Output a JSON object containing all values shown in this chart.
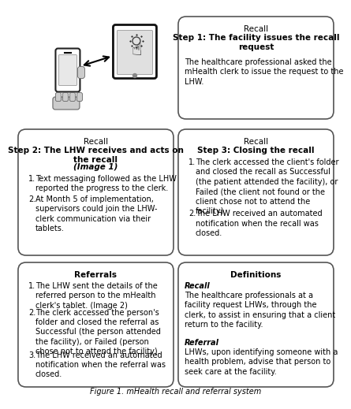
{
  "figure_title": "Figure 1. mHealth recall and referral system",
  "background_color": "#ffffff",
  "top_right_box": {
    "title": "Recall",
    "subtitle": "Step 1: The facility issues the recall\nrequest",
    "body": "The healthcare professional asked the\nmHealth clerk to issue the request to the\nLHW."
  },
  "middle_left_box": {
    "title": "Recall",
    "subtitle": "Step 2: The LHW receives and acts on\nthe recall",
    "subtitle_italic": "(Image 1)",
    "items": [
      "Text messaging followed as the LHW\nreported the progress to the clerk.",
      "At Month 5 of implementation,\nsupervisors could join the LHW-\nclerk communication via their\ntablets."
    ]
  },
  "middle_right_box": {
    "title": "Recall",
    "subtitle": "Step 3: Closing the recall",
    "items": [
      "The clerk accessed the client's folder\nand closed the recall as Successful\n(the patient attended the facility), or\nFailed (the client not found or the\nclient chose not to attend the\nfacility).",
      "The LHW received an automated\nnotification when the recall was\nclosed."
    ]
  },
  "bottom_left_box": {
    "title": "Referrals",
    "items": [
      "The LHW sent the details of the\nreferred person to the mHealth\nclerk's tablet. (Image 2)",
      "The clerk accessed the person's\nfolder and closed the referral as\nSuccessful (the person attended\nthe facility), or Failed (person\nchose not to attend the facility).",
      "The LHW received an automated\nnotification when the referral was\nclosed."
    ]
  },
  "bottom_right_box": {
    "title": "Definitions",
    "recall_label": "Recall",
    "recall_body": "The healthcare professionals at a\nfacility request LHWs, through the\nclerk, to assist in ensuring that a client\nreturn to the facility.",
    "referral_label": "Referral",
    "referral_body": "LHWs, upon identifying someone with a\nhealth problem, advise that person to\nseek care at the facility."
  }
}
